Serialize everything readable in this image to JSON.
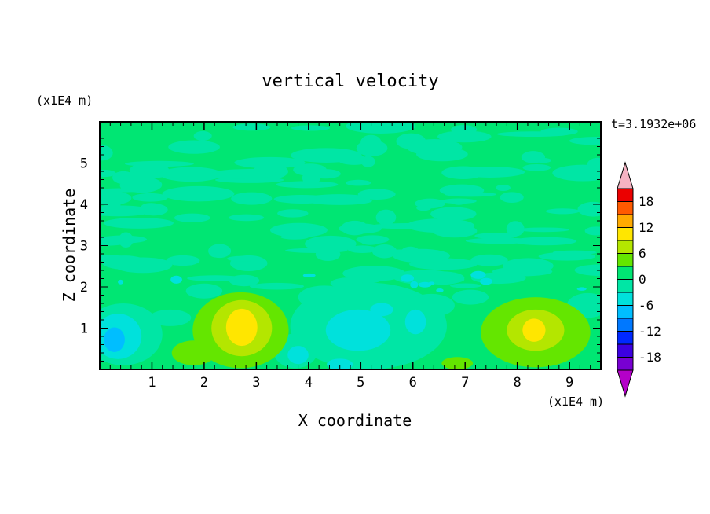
{
  "title": "vertical velocity",
  "timestamp": "t=3.1932e+06",
  "axes": {
    "x": {
      "label": "X coordinate",
      "unit": "(x1E4 m)",
      "min": 0,
      "max": 9.6,
      "major_ticks": [
        1,
        2,
        3,
        4,
        5,
        6,
        7,
        8,
        9
      ],
      "minor_step": 0.2
    },
    "z": {
      "label": "Z coordinate",
      "unit": "(x1E4 m)",
      "min": 0,
      "max": 6,
      "major_ticks": [
        1,
        2,
        3,
        4,
        5
      ],
      "minor_step": 0.2
    }
  },
  "colorbar": {
    "labels": [
      "18",
      "12",
      "6",
      "0",
      "-6",
      "-12",
      "-18"
    ],
    "box_colors_top_to_bottom": [
      "#EB0000",
      "#FF5A00",
      "#FFAA00",
      "#FFE600",
      "#B4E600",
      "#64E600",
      "#00E673",
      "#00E6A5",
      "#00E1DC",
      "#00BEFF",
      "#0078FF",
      "#0028FF",
      "#3C00E1",
      "#7800D2"
    ],
    "top_arrow_color": "#F5B3C3",
    "bottom_arrow_color": "#B400C8",
    "level_min": -21,
    "level_max": 21,
    "level_step": 3
  },
  "chart_data": {
    "type": "heatmap",
    "title": "vertical velocity",
    "xlabel": "X coordinate (x1E4 m)",
    "ylabel": "Z coordinate (x1E4 m)",
    "x_range": [
      0,
      9.6
    ],
    "z_range": [
      0,
      6
    ],
    "contour_levels": [
      -18,
      -15,
      -12,
      -9,
      -6,
      -3,
      0,
      3,
      6,
      9,
      12,
      15,
      18
    ],
    "legend_annotation": "t=3.1932e+06",
    "background_value": 1.5,
    "features": [
      {
        "x": 5.15,
        "z": 1.05,
        "rx": 1.5,
        "rz": 1.05,
        "v": -1.5
      },
      {
        "x": 4.3,
        "z": 1.75,
        "rx": 0.5,
        "rz": 0.28,
        "v": -1.5
      },
      {
        "x": 6.35,
        "z": 1.55,
        "rx": 0.45,
        "rz": 0.28,
        "v": -1.5
      },
      {
        "x": 3.75,
        "z": 0.45,
        "rx": 0.42,
        "rz": 0.42,
        "v": -1.5
      },
      {
        "x": 1.35,
        "z": 1.25,
        "rx": 0.4,
        "rz": 0.2,
        "v": -1.5
      },
      {
        "x": 0.45,
        "z": 0.85,
        "rx": 0.75,
        "rz": 0.75,
        "v": -1.5
      },
      {
        "x": 7.1,
        "z": 1.75,
        "rx": 0.35,
        "rz": 0.18,
        "v": -1.5
      },
      {
        "x": 9.35,
        "z": 1.55,
        "rx": 0.4,
        "rz": 0.3,
        "v": -1.5
      },
      {
        "x": 2.0,
        "z": 1.9,
        "rx": 0.35,
        "rz": 0.18,
        "v": -1.5
      },
      {
        "x": 4.95,
        "z": 0.95,
        "rx": 0.62,
        "rz": 0.5,
        "v": -4.5
      },
      {
        "x": 5.4,
        "z": 1.45,
        "rx": 0.22,
        "rz": 0.16,
        "v": -4.5
      },
      {
        "x": 6.05,
        "z": 1.15,
        "rx": 0.2,
        "rz": 0.3,
        "v": -4.5
      },
      {
        "x": 0.35,
        "z": 0.8,
        "rx": 0.45,
        "rz": 0.55,
        "v": -4.5
      },
      {
        "x": 3.8,
        "z": 0.35,
        "rx": 0.2,
        "rz": 0.22,
        "v": -4.5
      },
      {
        "x": 4.6,
        "z": 0.12,
        "rx": 0.25,
        "rz": 0.14,
        "v": -4.5
      },
      {
        "x": 0.28,
        "z": 0.72,
        "rx": 0.2,
        "rz": 0.3,
        "v": -7.5
      },
      {
        "x": 2.7,
        "z": 0.95,
        "rx": 0.92,
        "rz": 0.92,
        "v": 4.5
      },
      {
        "x": 1.8,
        "z": 0.4,
        "rx": 0.42,
        "rz": 0.3,
        "v": 4.5
      },
      {
        "x": 8.35,
        "z": 0.9,
        "rx": 1.05,
        "rz": 0.85,
        "v": 4.5
      },
      {
        "x": 6.85,
        "z": 0.15,
        "rx": 0.3,
        "rz": 0.15,
        "v": 4.5
      },
      {
        "x": 2.72,
        "z": 1.0,
        "rx": 0.58,
        "rz": 0.68,
        "v": 7.5
      },
      {
        "x": 8.35,
        "z": 0.95,
        "rx": 0.55,
        "rz": 0.5,
        "v": 7.5
      },
      {
        "x": 2.72,
        "z": 1.02,
        "rx": 0.3,
        "rz": 0.45,
        "v": 10.5
      },
      {
        "x": 8.32,
        "z": 0.95,
        "rx": 0.22,
        "rz": 0.28,
        "v": 10.5
      }
    ],
    "texture": [
      {
        "seed": 20240601,
        "count": 130,
        "x_min": 0,
        "x_max": 9.6,
        "z_min": 1.9,
        "z_max": 5.98,
        "rx_min": 0.12,
        "rx_max": 0.7,
        "rz_min": 0.05,
        "rz_max": 0.2,
        "v": -1.5
      },
      {
        "seed": 777,
        "count": 12,
        "x_min": 0.2,
        "x_max": 9.4,
        "z_min": 1.9,
        "z_max": 2.3,
        "rx_min": 0.05,
        "rx_max": 0.16,
        "rz_min": 0.04,
        "rz_max": 0.1,
        "v": -4.5
      }
    ]
  }
}
